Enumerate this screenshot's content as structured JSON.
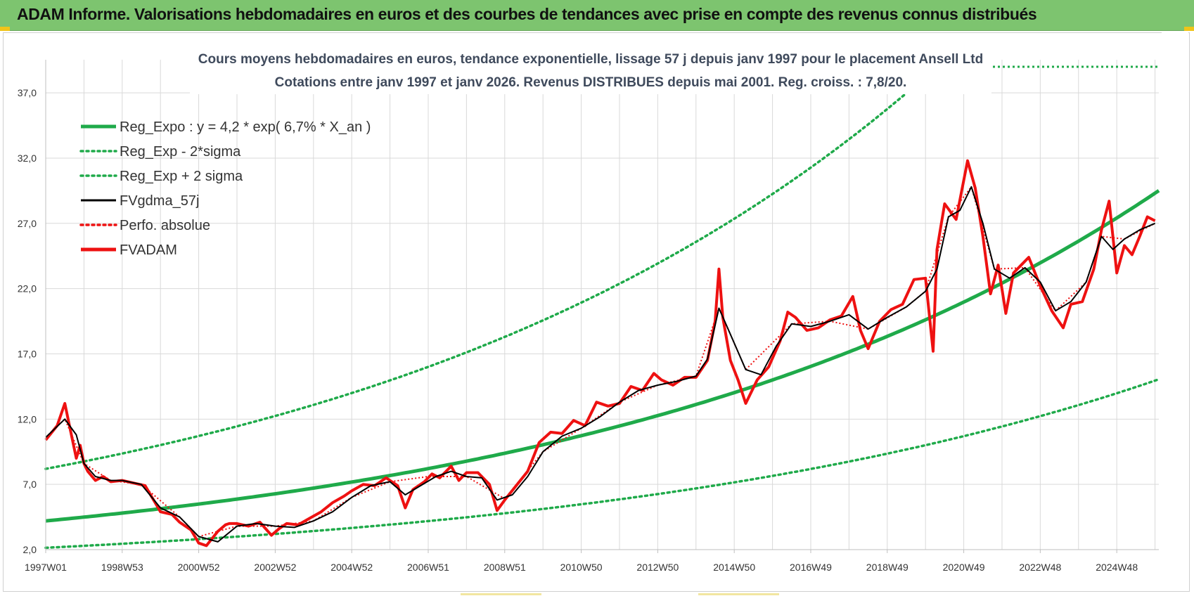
{
  "banner": {
    "title": "ADAM Informe. Valorisations hebdomadaires en euros et des courbes de tendances avec prise en compte des revenus connus distribués"
  },
  "colors": {
    "banner_bg": "#7dc46f",
    "trend_green": "#1faa4a",
    "price_red": "#ee1111",
    "smooth_black": "#000000",
    "title_slate": "#3f4a5c",
    "grid": "#d9d9d9"
  },
  "chart_data": {
    "type": "line",
    "title_line1": "Cours moyens hebdomadaires en euros, tendance exponentielle, lissage 57 j depuis janv 1997  pour le  placement Ansell Ltd",
    "title_line2": "Cotations entre janv 1997 et janv 2026. Revenus DISTRIBUES depuis mai 2001. Reg. croiss. : 7,8/20.",
    "xlabel": "",
    "ylabel": "",
    "x_range": [
      1997.0,
      2026.1
    ],
    "ylim": [
      2.0,
      39.0
    ],
    "y_ticks": [
      2.0,
      7.0,
      12.0,
      17.0,
      22.0,
      27.0,
      32.0,
      37.0
    ],
    "y_tick_labels": [
      "2,0",
      "7,0",
      "12,0",
      "17,0",
      "22,0",
      "27,0",
      "32,0",
      "37,0"
    ],
    "x_ticks": [
      1997.0,
      1999.0,
      2001.0,
      2003.0,
      2005.0,
      2007.0,
      2009.0,
      2011.0,
      2013.0,
      2015.0,
      2017.0,
      2019.0,
      2021.0,
      2023.0,
      2025.0
    ],
    "x_tick_labels": [
      "1997W01",
      "1998W53",
      "2000W52",
      "2002W52",
      "2004W52",
      "2006W51",
      "2008W51",
      "2010W50",
      "2012W50",
      "2014W50",
      "2016W49",
      "2018W49",
      "2020W49",
      "2022W48",
      "2024W48"
    ],
    "grid": true,
    "legend_position": "top-left",
    "legend": [
      {
        "label": "Reg_Expo : y = 4,2 * exp( 6,7% *  X_an )",
        "style": "solid-thick",
        "color": "#1faa4a"
      },
      {
        "label": "Reg_Exp - 2*sigma",
        "style": "dotted",
        "color": "#1faa4a"
      },
      {
        "label": "Reg_Exp + 2 sigma",
        "style": "dotted",
        "color": "#1faa4a"
      },
      {
        "label": "FVgdma_57j",
        "style": "solid",
        "color": "#000000"
      },
      {
        "label": "Perfo. absolue",
        "style": "dotted",
        "color": "#ee1111"
      },
      {
        "label": "FVADAM",
        "style": "solid-thick",
        "color": "#ee1111"
      }
    ],
    "trend": {
      "a": 4.2,
      "rate": 0.067,
      "start_year": 1997.0,
      "lower_factor": 0.51,
      "upper_factor": 1.95
    },
    "series": [
      {
        "name": "FVADAM",
        "x": [
          1997.0,
          1997.3,
          1997.5,
          1997.6,
          1997.8,
          1997.9,
          1998.0,
          1998.1,
          1998.3,
          1998.5,
          1998.7,
          1999.0,
          1999.3,
          1999.6,
          1999.9,
          2000.0,
          2000.3,
          2000.5,
          2000.8,
          2001.0,
          2001.2,
          2001.5,
          2001.7,
          2001.8,
          2002.0,
          2002.3,
          2002.6,
          2002.9,
          2003.1,
          2003.3,
          2003.6,
          2003.9,
          2004.2,
          2004.5,
          2004.8,
          2005.0,
          2005.3,
          2005.6,
          2005.9,
          2006.2,
          2006.4,
          2006.6,
          2006.9,
          2007.1,
          2007.3,
          2007.6,
          2007.8,
          2008.0,
          2008.3,
          2008.6,
          2008.8,
          2009.0,
          2009.3,
          2009.6,
          2009.9,
          2010.2,
          2010.5,
          2010.8,
          2011.1,
          2011.4,
          2011.7,
          2012.0,
          2012.3,
          2012.6,
          2012.9,
          2013.1,
          2013.4,
          2013.7,
          2014.0,
          2014.3,
          2014.5,
          2014.6,
          2014.7,
          2014.9,
          2015.1,
          2015.3,
          2015.6,
          2015.9,
          2016.2,
          2016.4,
          2016.6,
          2016.9,
          2017.2,
          2017.5,
          2017.8,
          2018.1,
          2018.3,
          2018.5,
          2018.8,
          2019.1,
          2019.4,
          2019.7,
          2020.0,
          2020.2,
          2020.3,
          2020.5,
          2020.8,
          2021.1,
          2021.3,
          2021.5,
          2021.7,
          2021.9,
          2022.1,
          2022.3,
          2022.5,
          2022.7,
          2023.0,
          2023.3,
          2023.6,
          2023.8,
          2024.1,
          2024.4,
          2024.6,
          2024.8,
          2025.0,
          2025.2,
          2025.4,
          2025.6,
          2025.8,
          2026.0
        ],
        "values": [
          10.4,
          11.5,
          13.2,
          11.8,
          9.0,
          10.0,
          8.6,
          8.0,
          7.3,
          7.6,
          7.2,
          7.3,
          7.1,
          6.9,
          5.4,
          4.9,
          4.7,
          4.1,
          3.5,
          2.5,
          2.3,
          3.4,
          3.9,
          4.0,
          4.0,
          3.8,
          4.1,
          3.1,
          3.6,
          4.0,
          3.9,
          4.4,
          4.9,
          5.6,
          6.1,
          6.5,
          7.0,
          6.9,
          7.5,
          6.9,
          5.2,
          6.6,
          7.2,
          7.8,
          7.5,
          8.4,
          7.3,
          7.9,
          7.9,
          7.0,
          5.0,
          5.8,
          6.9,
          8.0,
          10.2,
          11.0,
          10.9,
          11.9,
          11.5,
          13.3,
          13.0,
          13.2,
          14.5,
          14.2,
          15.5,
          15.0,
          14.6,
          15.2,
          15.2,
          16.5,
          19.5,
          23.5,
          19.8,
          16.5,
          15.0,
          13.2,
          15.0,
          16.0,
          18.0,
          20.2,
          19.8,
          18.8,
          19.0,
          19.6,
          19.9,
          21.4,
          18.8,
          17.4,
          19.5,
          20.4,
          20.8,
          22.7,
          22.8,
          17.2,
          25.0,
          28.5,
          27.3,
          31.8,
          29.7,
          26.0,
          21.6,
          23.8,
          20.1,
          23.2,
          23.8,
          24.4,
          22.2,
          20.3,
          19.0,
          20.8,
          21.0,
          23.5,
          26.5,
          28.7,
          23.2,
          25.3,
          24.6,
          26.0,
          27.5,
          27.2
        ]
      },
      {
        "name": "FVgdma_57j",
        "x": [
          1997.0,
          1997.5,
          1997.8,
          1998.0,
          1998.3,
          1998.7,
          1999.0,
          1999.5,
          2000.0,
          2000.5,
          2001.0,
          2001.5,
          2002.0,
          2002.5,
          2003.0,
          2003.5,
          2004.0,
          2004.5,
          2005.0,
          2005.5,
          2006.0,
          2006.4,
          2006.8,
          2007.2,
          2007.6,
          2008.0,
          2008.4,
          2008.8,
          2009.2,
          2009.6,
          2010.0,
          2010.5,
          2011.0,
          2011.5,
          2012.0,
          2012.5,
          2013.0,
          2013.5,
          2014.0,
          2014.3,
          2014.6,
          2014.9,
          2015.3,
          2015.7,
          2016.1,
          2016.5,
          2017.0,
          2017.5,
          2018.0,
          2018.5,
          2019.0,
          2019.5,
          2020.0,
          2020.3,
          2020.6,
          2020.9,
          2021.2,
          2021.5,
          2021.8,
          2022.2,
          2022.6,
          2023.0,
          2023.4,
          2023.8,
          2024.2,
          2024.6,
          2024.9,
          2025.2,
          2025.6,
          2026.0
        ],
        "values": [
          10.6,
          12.0,
          10.8,
          8.6,
          7.6,
          7.3,
          7.3,
          7.0,
          5.2,
          4.5,
          3.0,
          2.6,
          3.8,
          4.0,
          3.8,
          3.7,
          4.2,
          4.9,
          6.0,
          6.9,
          7.2,
          6.2,
          6.9,
          7.6,
          8.0,
          7.6,
          7.5,
          5.8,
          6.2,
          7.6,
          9.5,
          10.7,
          11.3,
          12.2,
          13.3,
          14.2,
          14.6,
          14.9,
          15.3,
          16.6,
          20.5,
          18.5,
          15.8,
          15.4,
          17.6,
          19.3,
          19.1,
          19.5,
          20.0,
          18.9,
          19.8,
          20.6,
          21.8,
          23.5,
          27.5,
          28.0,
          29.8,
          27.0,
          23.5,
          22.8,
          23.6,
          22.5,
          20.3,
          21.0,
          22.5,
          26.0,
          25.0,
          25.8,
          26.5,
          27.0
        ]
      },
      {
        "name": "Perfo. absolue",
        "x": [
          1997.0,
          1997.5,
          1998.0,
          1998.7,
          1999.5,
          2000.5,
          2001.0,
          2002.0,
          2003.0,
          2004.0,
          2005.0,
          2006.0,
          2007.0,
          2008.0,
          2009.0,
          2010.0,
          2011.0,
          2012.0,
          2013.0,
          2014.0,
          2014.6,
          2015.3,
          2016.5,
          2017.5,
          2018.5,
          2019.5,
          2020.0,
          2020.6,
          2021.2,
          2021.8,
          2022.6,
          2023.4,
          2024.2,
          2024.6,
          2025.2,
          2026.0
        ],
        "values": [
          10.6,
          12.0,
          8.6,
          7.3,
          7.0,
          4.5,
          3.0,
          3.8,
          3.8,
          4.2,
          6.0,
          7.2,
          7.6,
          7.6,
          5.9,
          9.5,
          11.3,
          13.3,
          14.6,
          15.3,
          20.5,
          15.8,
          19.3,
          19.5,
          18.9,
          20.6,
          21.8,
          27.5,
          29.8,
          23.5,
          23.6,
          20.3,
          22.5,
          26.0,
          25.8,
          27.0
        ]
      }
    ]
  }
}
